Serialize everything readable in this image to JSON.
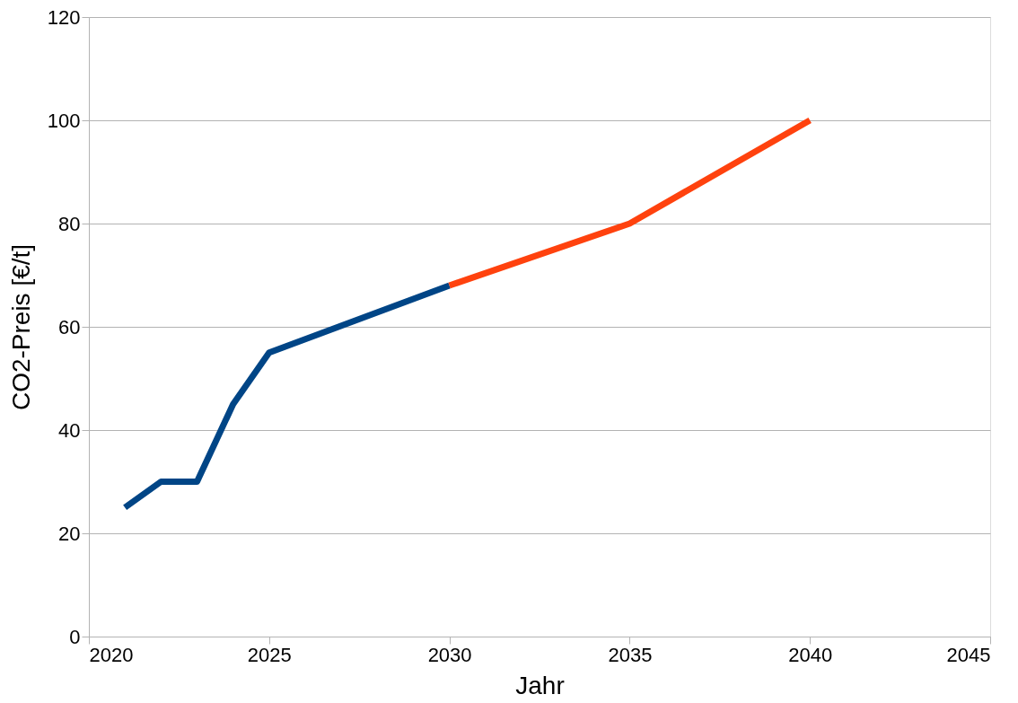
{
  "chart_data": {
    "type": "line",
    "xlabel": "Jahr",
    "ylabel": "CO2-Preis [€/t]",
    "xlim": [
      2020,
      2045
    ],
    "xticks": [
      2020,
      2025,
      2030,
      2035,
      2040,
      2045
    ],
    "ylim": [
      0,
      120
    ],
    "yticks": [
      0,
      20,
      40,
      60,
      80,
      100,
      120
    ],
    "grid": "y",
    "marker": "none",
    "line_style": "solid",
    "series": [
      {
        "color": "#004586",
        "x": [
          2021,
          2022,
          2023,
          2024,
          2025,
          2030
        ],
        "values": [
          25,
          30,
          30,
          45,
          55,
          68
        ]
      },
      {
        "color": "#ff420e",
        "x": [
          2030,
          2035,
          2040
        ],
        "values": [
          68,
          80,
          100
        ]
      }
    ]
  }
}
